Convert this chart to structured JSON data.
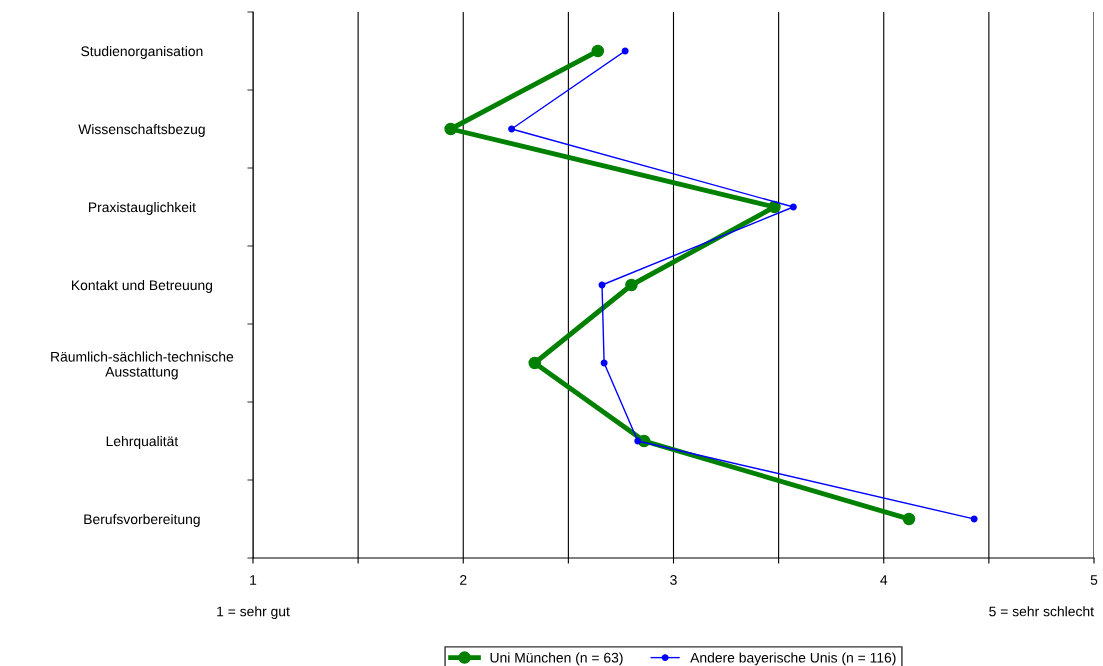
{
  "chart_data": {
    "type": "line",
    "orientation": "horizontal",
    "categories": [
      "Studienorganisation",
      "Wissenschaftsbezug",
      "Praxistauglichkeit",
      "Kontakt und Betreuung",
      "Räumlich-sächlich-technische\nAusstattung",
      "Lehrqualität",
      "Berufsvorbereitung"
    ],
    "series": [
      {
        "name": "Uni München (n = 63)",
        "color": "#008000",
        "values": [
          2.64,
          1.94,
          3.48,
          2.8,
          2.34,
          2.86,
          4.12
        ]
      },
      {
        "name": "Andere bayerische Unis (n = 116)",
        "color": "#0000ff",
        "values": [
          2.77,
          2.23,
          3.57,
          2.66,
          2.67,
          2.83,
          4.43
        ]
      }
    ],
    "xlim": [
      1,
      5
    ],
    "xticks": [
      1,
      {
        "value": 1.5,
        "label": null
      },
      2,
      {
        "value": 2.5,
        "label": null
      },
      3,
      {
        "value": 3.5,
        "label": null
      },
      4,
      {
        "value": 4.5,
        "label": null
      },
      5
    ],
    "grid": "x",
    "legend": "bottom",
    "marker": "circle",
    "line_style": "solid",
    "annotations": [
      "1 = sehr gut",
      "5 = sehr schlecht"
    ]
  }
}
